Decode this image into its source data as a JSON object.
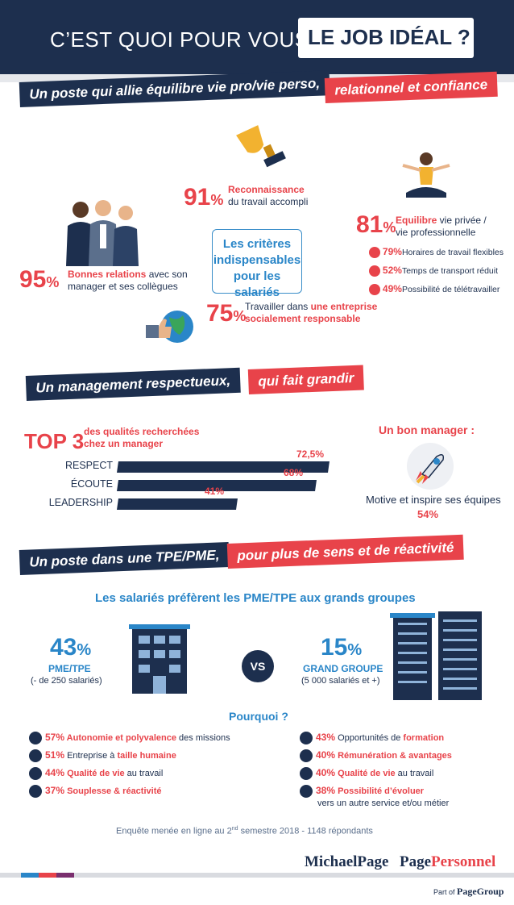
{
  "header": {
    "question": "C’EST QUOI POUR VOUS,",
    "highlight": "LE JOB IDÉAL ?"
  },
  "section1": {
    "banner_navy": "Un poste qui allie équilibre vie pro/vie perso,",
    "banner_red": "relationnel et confiance",
    "center": {
      "line1": "Les critères",
      "line2": "indispensables",
      "line3": "pour les salariés"
    },
    "recognition": {
      "value": "91",
      "sym": "%",
      "bold": "Reconnaissance",
      "rest": "du travail accompli"
    },
    "relations": {
      "value": "95",
      "sym": "%",
      "bold": "Bonnes relations",
      "rest1": " avec son",
      "rest2": "manager et ses collègues"
    },
    "balance": {
      "value": "81",
      "sym": "%",
      "bold": "Equilibre",
      "rest1": " vie privée /",
      "rest2": "vie professionnelle",
      "items": [
        {
          "pct": "79%",
          "label": "Horaires de travail flexibles"
        },
        {
          "pct": "52%",
          "label": "Temps de transport réduit"
        },
        {
          "pct": "49%",
          "label": "Possibilité de télétravailler"
        }
      ]
    },
    "csr": {
      "value": "75",
      "sym": "%",
      "plain": "Travailler dans ",
      "bold1": "une entreprise",
      "bold2": "socialement responsable"
    }
  },
  "section2": {
    "banner_navy": "Un management respectueux,",
    "banner_red": "qui fait grandir",
    "top3": "TOP 3",
    "top3_sub1": "des qualités recherchées",
    "top3_sub2": "chez un manager",
    "bars": [
      {
        "label": "RESPECT",
        "value": 72.5,
        "display": "72,5%"
      },
      {
        "label": "ÉCOUTE",
        "value": 68,
        "display": "68%"
      },
      {
        "label": "LEADERSHIP",
        "value": 41,
        "display": "41%"
      }
    ],
    "good_manager": "Un bon manager :",
    "inspire": "Motive et inspire ses équipes",
    "inspire_pct": "54%"
  },
  "section3": {
    "banner_navy": "Un poste dans une TPE/PME,",
    "banner_red": "pour plus de sens et de réactivité",
    "headline": "Les salariés préfèrent les PME/TPE aux grands groupes",
    "pme": {
      "value": "43",
      "sym": "%",
      "label": "PME/TPE",
      "sub": "(- de 250 salariés)"
    },
    "vs": "VS",
    "gg": {
      "value": "15",
      "sym": "%",
      "label": "GRAND GROUPE",
      "sub": "(5 000 salariés et +)"
    },
    "why": "Pourquoi ?",
    "left": [
      {
        "pct": "57%",
        "bold": " Autonomie et polyvalence",
        "rest": " des missions"
      },
      {
        "pct": "51%",
        "bold": "",
        "rest": " Entreprise à ",
        "bold2": "taille humaine"
      },
      {
        "pct": "44%",
        "bold": " Qualité de vie",
        "rest": " au travail"
      },
      {
        "pct": "37%",
        "bold": " Souplesse & réactivité",
        "rest": ""
      }
    ],
    "right": [
      {
        "pct": "43%",
        "rest": " Opportunités de ",
        "bold": "formation"
      },
      {
        "pct": "40%",
        "rest": "",
        "bold": " Rémunération & avantages"
      },
      {
        "pct": "40%",
        "rest": "",
        "bold": " Qualité de vie",
        "rest2": " au travail"
      },
      {
        "pct": "38%",
        "rest": "",
        "bold": " Possibilité d’évoluer",
        "line2": "vers un autre service et/ou métier"
      }
    ]
  },
  "footer": {
    "survey_a": "Enquête menée en ligne au 2",
    "survey_sup": "nd",
    "survey_b": " semestre 2018 - 1148 répondants",
    "logo1": "MichaelPage",
    "logo2a": "Page",
    "logo2b": "Personnel",
    "partof": "Part of",
    "group": "PageGroup"
  },
  "colors": {
    "navy": "#1d2f4e",
    "red": "#e8434a",
    "blue": "#2a86c8"
  }
}
